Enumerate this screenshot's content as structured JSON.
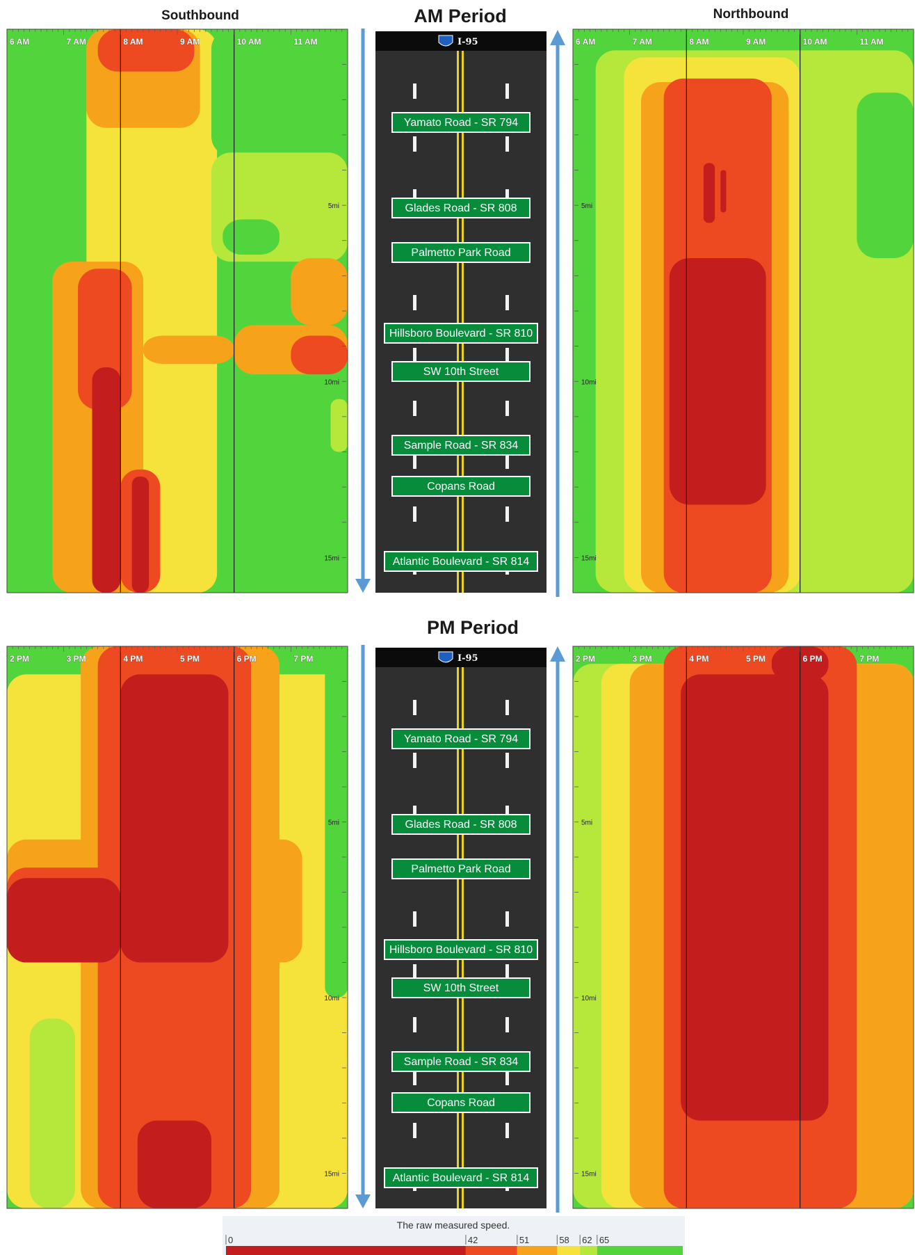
{
  "headers": {
    "southbound": "Southbound",
    "northbound": "Northbound",
    "am_period": "AM Period",
    "pm_period": "PM Period"
  },
  "road": {
    "shield_label": "I-95",
    "exits": [
      "Yamato Road - SR 794",
      "Glades Road - SR 808",
      "Palmetto Park Road",
      "Hillsboro Boulevard - SR 810",
      "SW 10th Street",
      "Sample Road - SR 834",
      "Copans Road",
      "Atlantic Boulevard - SR 814"
    ]
  },
  "legend": {
    "title": "The raw measured speed.",
    "ticks": [
      "0",
      "42",
      "51",
      "58",
      "62",
      "65"
    ]
  },
  "colors": {
    "speed_0_42": "#c41d1d",
    "speed_42_51": "#ee4a22",
    "speed_51_58": "#f7a21b",
    "speed_58_62": "#f5e33c",
    "speed_62_65": "#b6e83c",
    "speed_65_plus": "#52d43c",
    "road": "#2f2f2f",
    "direction_arrow": "#5b9bd5",
    "sign_green": "#078c3c"
  },
  "chart_data": [
    {
      "type": "heatmap",
      "panel": "AM Southbound",
      "x_tick_labels": [
        "6 AM",
        "7 AM",
        "8 AM",
        "9 AM",
        "10 AM",
        "11 AM"
      ],
      "x_range_hours": [
        6,
        12
      ],
      "y_tick_labels": [
        "5mi",
        "10mi",
        "15mi"
      ],
      "y_range_mi": [
        0,
        16
      ],
      "y_ticks_mi": [
        5,
        10,
        15
      ],
      "value": "speed (mph)",
      "zones": [
        {
          "cls": 3,
          "t": [
            7.4,
            9.7
          ],
          "d": [
            0,
            16
          ]
        },
        {
          "cls": 2,
          "t": [
            7.4,
            9.4
          ],
          "d": [
            0,
            2.8
          ]
        },
        {
          "cls": 1,
          "t": [
            7.6,
            9.3
          ],
          "d": [
            0,
            1.2
          ]
        },
        {
          "cls": 5,
          "t": [
            9.6,
            12
          ],
          "d": [
            0,
            3.6
          ]
        },
        {
          "cls": 4,
          "t": [
            9.6,
            12
          ],
          "d": [
            3.5,
            6.6
          ]
        },
        {
          "cls": 5,
          "t": [
            9.8,
            10.8
          ],
          "d": [
            5.4,
            6.4
          ]
        },
        {
          "cls": 2,
          "t": [
            6.8,
            8.4
          ],
          "d": [
            6.6,
            16
          ]
        },
        {
          "cls": 1,
          "t": [
            7.25,
            8.2
          ],
          "d": [
            6.8,
            10.8
          ]
        },
        {
          "cls": 0,
          "t": [
            7.5,
            8.0
          ],
          "d": [
            9.6,
            16
          ]
        },
        {
          "cls": 1,
          "t": [
            8.0,
            8.7
          ],
          "d": [
            12.5,
            16
          ]
        },
        {
          "cls": 0,
          "t": [
            8.2,
            8.5
          ],
          "d": [
            12.7,
            16
          ]
        },
        {
          "cls": 2,
          "t": [
            8.4,
            10.0
          ],
          "d": [
            8.7,
            9.5
          ]
        },
        {
          "cls": 2,
          "t": [
            10.0,
            12.0
          ],
          "d": [
            8.4,
            9.8
          ]
        },
        {
          "cls": 1,
          "t": [
            11.0,
            12.0
          ],
          "d": [
            8.7,
            9.8
          ]
        },
        {
          "cls": 2,
          "t": [
            11.0,
            12.0
          ],
          "d": [
            6.5,
            8.4
          ]
        },
        {
          "cls": 4,
          "t": [
            11.7,
            12.0
          ],
          "d": [
            10.5,
            12.0
          ]
        }
      ]
    },
    {
      "type": "heatmap",
      "panel": "AM Northbound",
      "x_tick_labels": [
        "6 AM",
        "7 AM",
        "8 AM",
        "9 AM",
        "10 AM",
        "11 AM"
      ],
      "x_range_hours": [
        6,
        12
      ],
      "y_tick_labels": [
        "5mi",
        "10mi",
        "15mi"
      ],
      "y_range_mi": [
        0,
        16
      ],
      "y_ticks_mi": [
        5,
        10,
        15
      ],
      "value": "speed (mph)",
      "zones": [
        {
          "cls": 4,
          "t": [
            6.4,
            12
          ],
          "d": [
            0.6,
            16
          ]
        },
        {
          "cls": 5,
          "t": [
            11.0,
            12
          ],
          "d": [
            1.8,
            6.5
          ]
        },
        {
          "cls": 3,
          "t": [
            6.9,
            10.0
          ],
          "d": [
            0.8,
            16
          ]
        },
        {
          "cls": 2,
          "t": [
            7.2,
            9.8
          ],
          "d": [
            1.5,
            16
          ]
        },
        {
          "cls": 1,
          "t": [
            7.6,
            9.5
          ],
          "d": [
            1.4,
            16
          ]
        },
        {
          "cls": 0,
          "t": [
            7.7,
            9.4
          ],
          "d": [
            6.5,
            13.5
          ]
        },
        {
          "cls": 0,
          "t": [
            8.3,
            8.5
          ],
          "d": [
            3.8,
            5.5
          ]
        },
        {
          "cls": 0,
          "t": [
            8.6,
            8.7
          ],
          "d": [
            4.0,
            5.2
          ]
        }
      ]
    },
    {
      "type": "heatmap",
      "panel": "PM Southbound",
      "x_tick_labels": [
        "2 PM",
        "3 PM",
        "4 PM",
        "5 PM",
        "6 PM",
        "7 PM"
      ],
      "x_range_hours": [
        14,
        20
      ],
      "y_tick_labels": [
        "5mi",
        "10mi",
        "15mi"
      ],
      "y_range_mi": [
        0,
        16
      ],
      "y_ticks_mi": [
        5,
        10,
        15
      ],
      "value": "speed (mph)",
      "zones": [
        {
          "cls": 3,
          "t": [
            14,
            20
          ],
          "d": [
            0.8,
            16
          ]
        },
        {
          "cls": 4,
          "t": [
            14.4,
            15.2
          ],
          "d": [
            10.6,
            16
          ]
        },
        {
          "cls": 5,
          "t": [
            19.6,
            20
          ],
          "d": [
            0,
            10
          ]
        },
        {
          "cls": 2,
          "t": [
            14,
            19.2
          ],
          "d": [
            5.5,
            9.0
          ]
        },
        {
          "cls": 2,
          "t": [
            15.3,
            18.8
          ],
          "d": [
            0,
            16
          ]
        },
        {
          "cls": 1,
          "t": [
            15.6,
            18.3
          ],
          "d": [
            0,
            16
          ]
        },
        {
          "cls": 1,
          "t": [
            14,
            17.8
          ],
          "d": [
            6.3,
            9.0
          ]
        },
        {
          "cls": 0,
          "t": [
            16.0,
            17.9
          ],
          "d": [
            0.8,
            9.0
          ]
        },
        {
          "cls": 0,
          "t": [
            14,
            16.0
          ],
          "d": [
            6.6,
            9.0
          ]
        },
        {
          "cls": 0,
          "t": [
            16.3,
            17.6
          ],
          "d": [
            13.5,
            16
          ]
        }
      ]
    },
    {
      "type": "heatmap",
      "panel": "PM Northbound",
      "x_tick_labels": [
        "2 PM",
        "3 PM",
        "4 PM",
        "5 PM",
        "6 PM",
        "7 PM"
      ],
      "x_range_hours": [
        14,
        20
      ],
      "y_tick_labels": [
        "5mi",
        "10mi",
        "15mi"
      ],
      "y_range_mi": [
        0,
        16
      ],
      "y_ticks_mi": [
        5,
        10,
        15
      ],
      "value": "speed (mph)",
      "zones": [
        {
          "cls": 4,
          "t": [
            14,
            20
          ],
          "d": [
            0.5,
            16
          ]
        },
        {
          "cls": 3,
          "t": [
            14.5,
            20
          ],
          "d": [
            0.5,
            16
          ]
        },
        {
          "cls": 2,
          "t": [
            15.0,
            20
          ],
          "d": [
            0.5,
            16
          ]
        },
        {
          "cls": 1,
          "t": [
            15.6,
            19.0
          ],
          "d": [
            0,
            16
          ]
        },
        {
          "cls": 0,
          "t": [
            15.9,
            18.5
          ],
          "d": [
            0.8,
            13.5
          ]
        },
        {
          "cls": 0,
          "t": [
            17.5,
            18.5
          ],
          "d": [
            0,
            1.0
          ]
        }
      ]
    }
  ]
}
